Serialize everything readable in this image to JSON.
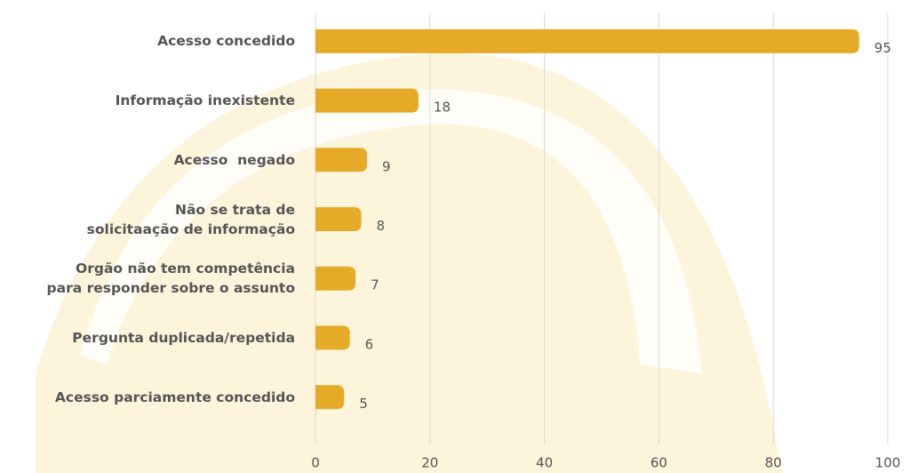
{
  "chart_data": {
    "type": "bar",
    "orientation": "horizontal",
    "categories": [
      "Acesso concedido",
      "Informação inexistente",
      "Acesso  negado",
      "Não se trata de\nsolicitaação de informação",
      "Orgão não tem competência\npara responder sobre o assunto",
      "Pergunta duplicada/repetida",
      "Acesso parciamente concedido"
    ],
    "values": [
      95,
      18,
      9,
      8,
      7,
      6,
      5
    ],
    "color": "#e5ab28",
    "xlim": [
      0,
      100
    ],
    "xticks": [
      0,
      20,
      40,
      60,
      80,
      100
    ],
    "grid": true
  }
}
